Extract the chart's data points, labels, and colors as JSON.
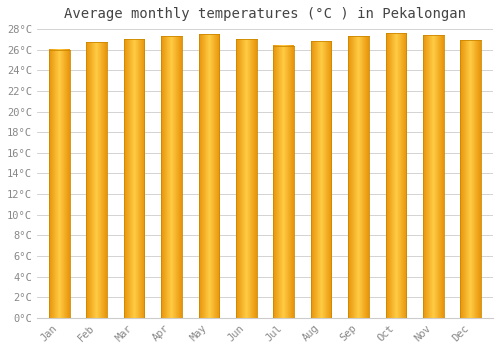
{
  "title": "Average monthly temperatures (°C ) in Pekalongan",
  "months": [
    "Jan",
    "Feb",
    "Mar",
    "Apr",
    "May",
    "Jun",
    "Jul",
    "Aug",
    "Sep",
    "Oct",
    "Nov",
    "Dec"
  ],
  "values": [
    26.0,
    26.7,
    27.0,
    27.3,
    27.5,
    27.0,
    26.4,
    26.8,
    27.3,
    27.6,
    27.4,
    26.9
  ],
  "bar_color_left": "#E8940A",
  "bar_color_center": "#FFCC44",
  "bar_color_right": "#E8940A",
  "background_color": "#FFFFFF",
  "plot_bg_color": "#FFFFFF",
  "grid_color": "#CCCCCC",
  "ylim": [
    0,
    28
  ],
  "ytick_step": 2,
  "title_fontsize": 10,
  "tick_fontsize": 7.5,
  "title_color": "#444444",
  "tick_color": "#888888",
  "bar_width": 0.55
}
